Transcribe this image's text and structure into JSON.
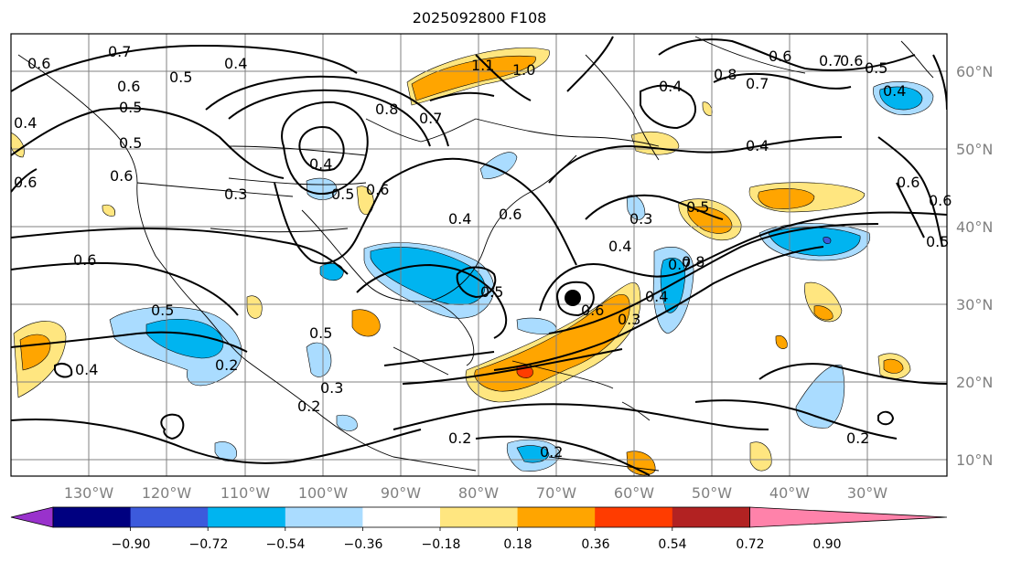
{
  "title": "2025092800 F108",
  "map": {
    "longitude_labels": [
      "130°W",
      "120°W",
      "110°W",
      "100°W",
      "90°W",
      "80°W",
      "70°W",
      "60°W",
      "50°W",
      "40°W",
      "30°W"
    ],
    "latitude_labels": [
      "60°N",
      "50°N",
      "40°N",
      "30°N",
      "20°N",
      "10°N"
    ],
    "contour_labels": [
      "0.7",
      "0.6",
      "0.4",
      "0.5",
      "0.6",
      "0.5",
      "0.4",
      "0.5",
      "0.6",
      "0.6",
      "0.3",
      "0.4",
      "0.8",
      "0.7",
      "1.1",
      "1.0",
      "0.4",
      "0.8",
      "0.7",
      "0.6",
      "0.7",
      "0.6",
      "0.5",
      "0.4",
      "0.4",
      "0.5",
      "0.6",
      "0.3",
      "0.4",
      "0.5",
      "0.6",
      "0.7",
      "0.4",
      "0.5",
      "0.6",
      "0.3",
      "0.4",
      "0.8",
      "0.5",
      "0.4",
      "0.5",
      "0.2",
      "0.2",
      "0.3",
      "0.2",
      "0.2",
      "0.2",
      "0.6",
      "0.5",
      "0.6",
      "0.6"
    ],
    "marker": "black-dot",
    "colors": {
      "contour": "#000000",
      "grid": "#808080",
      "light_blue": "#aadcff",
      "blue": "#00b4f0",
      "yellow": "#ffe680",
      "orange": "#ffa500",
      "red": "#ff3c00"
    }
  },
  "colorbar": {
    "ticks": [
      "−0.90",
      "−0.72",
      "−0.54",
      "−0.36",
      "−0.18",
      "0.18",
      "0.36",
      "0.54",
      "0.72",
      "0.90"
    ],
    "colors": [
      "#9932cc",
      "#000080",
      "#3c5adc",
      "#00b4f0",
      "#aadcff",
      "#ffffff",
      "#ffe680",
      "#ffa500",
      "#ff3c00",
      "#b22222",
      "#ff82aa"
    ]
  }
}
